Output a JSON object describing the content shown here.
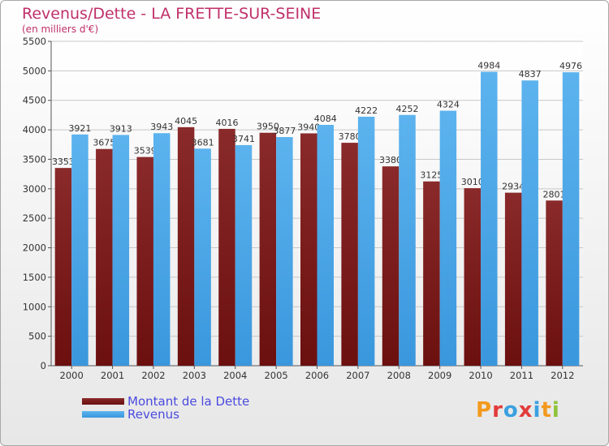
{
  "title": "Revenus/Dette - LA FRETTE-SUR-SEINE",
  "subtitle": "(en milliers d'€)",
  "logo_text": "Proxiti",
  "colors": {
    "dette": "#6b0f0f",
    "dette_top": "#8a2a2a",
    "revenus": "#3a97dd",
    "revenus_top": "#5cb3ee",
    "logo": [
      "#f39a1e",
      "#e23b3b",
      "#3aa0e0",
      "#e23b3b",
      "#3aa0e0",
      "#f39a1e",
      "#8fc33a"
    ]
  },
  "chart_data": {
    "type": "bar",
    "categories": [
      "2000",
      "2001",
      "2002",
      "2003",
      "2004",
      "2005",
      "2006",
      "2007",
      "2008",
      "2009",
      "2010",
      "2011",
      "2012"
    ],
    "series": [
      {
        "name": "Montant de la Dette",
        "values": [
          3353,
          3675,
          3539,
          4045,
          4016,
          3950,
          3940,
          3780,
          3380,
          3125,
          3010,
          2934,
          2801
        ],
        "labels": [
          "3353",
          "3675",
          "3539",
          "4045",
          "4016",
          "3950",
          "3940",
          "3780",
          "3380",
          "3125",
          "3010",
          "2934",
          "2801"
        ]
      },
      {
        "name": "Revenus",
        "values": [
          3921,
          3913,
          3943,
          3681,
          3741,
          3877,
          4084,
          4222,
          4252,
          4324,
          4984,
          4837,
          4976
        ],
        "labels": [
          "3921",
          "3913",
          "3943",
          "3681",
          "3741",
          "3877",
          "4084",
          "4222",
          "4252",
          "4324",
          "4984",
          "4837",
          "4976"
        ]
      }
    ],
    "ylim": [
      0,
      5500
    ],
    "yticks": [
      0,
      500,
      1000,
      1500,
      2000,
      2500,
      3000,
      3500,
      4000,
      4500,
      5000,
      5500
    ],
    "grid": true,
    "legend_position": "bottom-left"
  }
}
